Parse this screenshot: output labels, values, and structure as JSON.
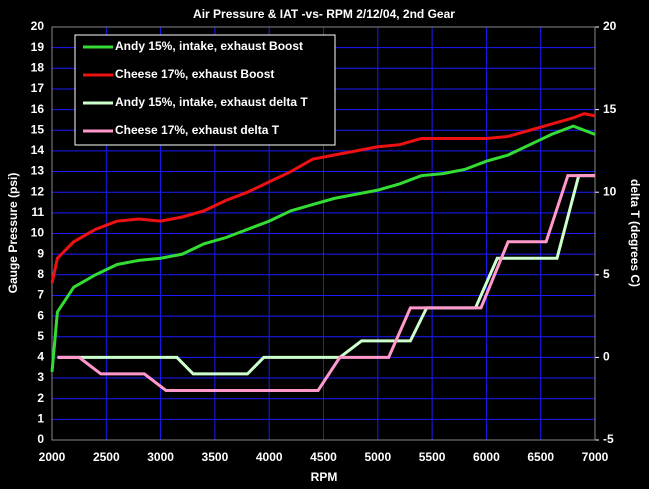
{
  "chart_data": {
    "type": "line",
    "title": "Air Pressure & IAT -vs- RPM 2/12/04, 2nd Gear",
    "x_label": "RPM",
    "y_label": "Gauge Pressure (psi)",
    "y2_label": "delta T  (degrees C)",
    "xlim": [
      2000,
      7000
    ],
    "xticks": [
      2000,
      2500,
      3000,
      3500,
      4000,
      4500,
      5000,
      5500,
      6000,
      6500,
      7000
    ],
    "ylim": [
      0,
      20
    ],
    "yticks": [
      0,
      1,
      2,
      3,
      4,
      5,
      6,
      7,
      8,
      9,
      10,
      11,
      12,
      13,
      14,
      15,
      16,
      17,
      18,
      19,
      20
    ],
    "y2lim": [
      -5,
      20
    ],
    "y2ticks": [
      -5,
      0,
      5,
      10,
      15,
      20
    ],
    "grid": true,
    "grid_color": "#1a1aff",
    "legend": "upper left",
    "series": [
      {
        "name": "Andy 15%, intake, exhaust Boost",
        "color": "#33dd33",
        "x": [
          2000,
          2050,
          2200,
          2400,
          2600,
          2800,
          3000,
          3200,
          3400,
          3600,
          3800,
          4000,
          4200,
          4400,
          4600,
          4800,
          5000,
          5200,
          5400,
          5600,
          5800,
          6000,
          6200,
          6400,
          6600,
          6800,
          7000
        ],
        "values": [
          3.3,
          6.2,
          7.4,
          8.0,
          8.5,
          8.7,
          8.8,
          9.0,
          9.5,
          9.8,
          10.2,
          10.6,
          11.1,
          11.4,
          11.7,
          11.9,
          12.1,
          12.4,
          12.8,
          12.9,
          13.1,
          13.5,
          13.8,
          14.3,
          14.8,
          15.2,
          14.8
        ]
      },
      {
        "name": "Cheese 17%, exhaust  Boost",
        "color": "#ee1111",
        "x": [
          2000,
          2050,
          2200,
          2400,
          2600,
          2800,
          3000,
          3200,
          3400,
          3600,
          3800,
          4000,
          4200,
          4400,
          4600,
          4800,
          5000,
          5200,
          5400,
          5600,
          5800,
          6000,
          6200,
          6400,
          6600,
          6800,
          6900,
          7000
        ],
        "values": [
          7.6,
          8.8,
          9.6,
          10.2,
          10.6,
          10.7,
          10.6,
          10.8,
          11.1,
          11.6,
          12.0,
          12.5,
          13.0,
          13.6,
          13.8,
          14.0,
          14.2,
          14.3,
          14.6,
          14.6,
          14.6,
          14.6,
          14.7,
          15.0,
          15.3,
          15.6,
          15.8,
          15.7
        ]
      },
      {
        "name": "Andy 15%, intake, exhaust delta T",
        "color": "#ccffcc",
        "axis": "y2",
        "x": [
          2050,
          3150,
          3300,
          3800,
          3950,
          4650,
          4850,
          5300,
          5450,
          5900,
          6100,
          6650,
          6850,
          7000
        ],
        "values": [
          0,
          0,
          -1,
          -1,
          0,
          0,
          1,
          1,
          3,
          3,
          6,
          6,
          11,
          11
        ]
      },
      {
        "name": "Cheese 17%, exhaust delta T",
        "color": "#ff99cc",
        "axis": "y2",
        "x": [
          2050,
          2250,
          2450,
          2850,
          3050,
          4450,
          4650,
          5100,
          5300,
          5950,
          6200,
          6550,
          6750,
          7000
        ],
        "values": [
          0,
          0,
          -1,
          -1,
          -2,
          -2,
          0,
          0,
          3,
          3,
          7,
          7,
          11,
          11
        ]
      }
    ]
  }
}
